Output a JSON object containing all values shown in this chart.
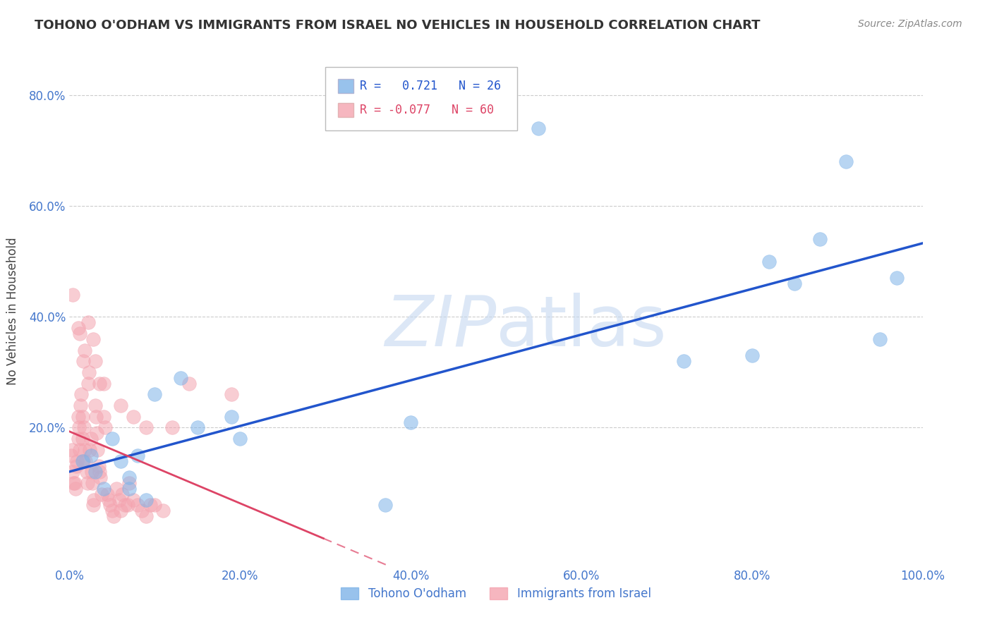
{
  "title": "TOHONO O'ODHAM VS IMMIGRANTS FROM ISRAEL NO VEHICLES IN HOUSEHOLD CORRELATION CHART",
  "source": "Source: ZipAtlas.com",
  "ylabel": "No Vehicles in Household",
  "legend_blue_r_val": "0.721",
  "legend_blue_n_val": "26",
  "legend_pink_r_val": "-0.077",
  "legend_pink_n_val": "60",
  "legend_label_blue": "Tohono O'odham",
  "legend_label_pink": "Immigrants from Israel",
  "blue_color": "#7fb3e8",
  "pink_color": "#f4a4b0",
  "trendline_blue": "#2255cc",
  "trendline_pink": "#dd4466",
  "xlim": [
    0.0,
    1.0
  ],
  "ylim": [
    -0.05,
    0.87
  ],
  "xtick_labels": [
    "0.0%",
    "20.0%",
    "40.0%",
    "60.0%",
    "80.0%",
    "100.0%"
  ],
  "xtick_vals": [
    0.0,
    0.2,
    0.4,
    0.6,
    0.8,
    1.0
  ],
  "ytick_labels": [
    "20.0%",
    "40.0%",
    "60.0%",
    "80.0%"
  ],
  "ytick_vals": [
    0.2,
    0.4,
    0.6,
    0.8
  ],
  "blue_x": [
    0.015,
    0.025,
    0.03,
    0.04,
    0.05,
    0.06,
    0.07,
    0.07,
    0.08,
    0.09,
    0.1,
    0.13,
    0.15,
    0.19,
    0.2,
    0.37,
    0.4,
    0.55,
    0.72,
    0.8,
    0.82,
    0.85,
    0.88,
    0.91,
    0.95,
    0.97
  ],
  "blue_y": [
    0.14,
    0.15,
    0.12,
    0.09,
    0.18,
    0.14,
    0.09,
    0.11,
    0.15,
    0.07,
    0.26,
    0.29,
    0.2,
    0.22,
    0.18,
    0.06,
    0.21,
    0.74,
    0.32,
    0.33,
    0.5,
    0.46,
    0.54,
    0.68,
    0.36,
    0.47
  ],
  "pink_x": [
    0.002,
    0.003,
    0.004,
    0.005,
    0.006,
    0.007,
    0.008,
    0.009,
    0.01,
    0.01,
    0.011,
    0.012,
    0.013,
    0.014,
    0.015,
    0.015,
    0.016,
    0.017,
    0.018,
    0.019,
    0.02,
    0.021,
    0.022,
    0.023,
    0.024,
    0.025,
    0.026,
    0.027,
    0.028,
    0.029,
    0.03,
    0.031,
    0.032,
    0.033,
    0.034,
    0.035,
    0.036,
    0.038,
    0.04,
    0.042,
    0.044,
    0.046,
    0.048,
    0.05,
    0.052,
    0.055,
    0.058,
    0.06,
    0.062,
    0.065,
    0.068,
    0.07,
    0.075,
    0.08,
    0.085,
    0.09,
    0.095,
    0.1,
    0.11,
    0.12
  ],
  "pink_y": [
    0.15,
    0.16,
    0.12,
    0.1,
    0.1,
    0.09,
    0.13,
    0.14,
    0.18,
    0.22,
    0.2,
    0.16,
    0.24,
    0.26,
    0.18,
    0.22,
    0.14,
    0.2,
    0.16,
    0.14,
    0.12,
    0.1,
    0.28,
    0.3,
    0.16,
    0.18,
    0.12,
    0.1,
    0.06,
    0.07,
    0.24,
    0.22,
    0.19,
    0.16,
    0.13,
    0.12,
    0.11,
    0.08,
    0.22,
    0.2,
    0.08,
    0.07,
    0.06,
    0.05,
    0.04,
    0.09,
    0.07,
    0.05,
    0.08,
    0.06,
    0.06,
    0.1,
    0.07,
    0.06,
    0.05,
    0.04,
    0.06,
    0.06,
    0.05,
    0.2
  ],
  "pink_x_high": [
    0.004,
    0.01,
    0.012,
    0.016,
    0.018,
    0.022,
    0.028,
    0.03,
    0.035,
    0.04,
    0.06,
    0.075,
    0.09,
    0.14,
    0.19
  ],
  "pink_y_high": [
    0.44,
    0.38,
    0.37,
    0.32,
    0.34,
    0.39,
    0.36,
    0.32,
    0.28,
    0.28,
    0.24,
    0.22,
    0.2,
    0.28,
    0.26
  ]
}
